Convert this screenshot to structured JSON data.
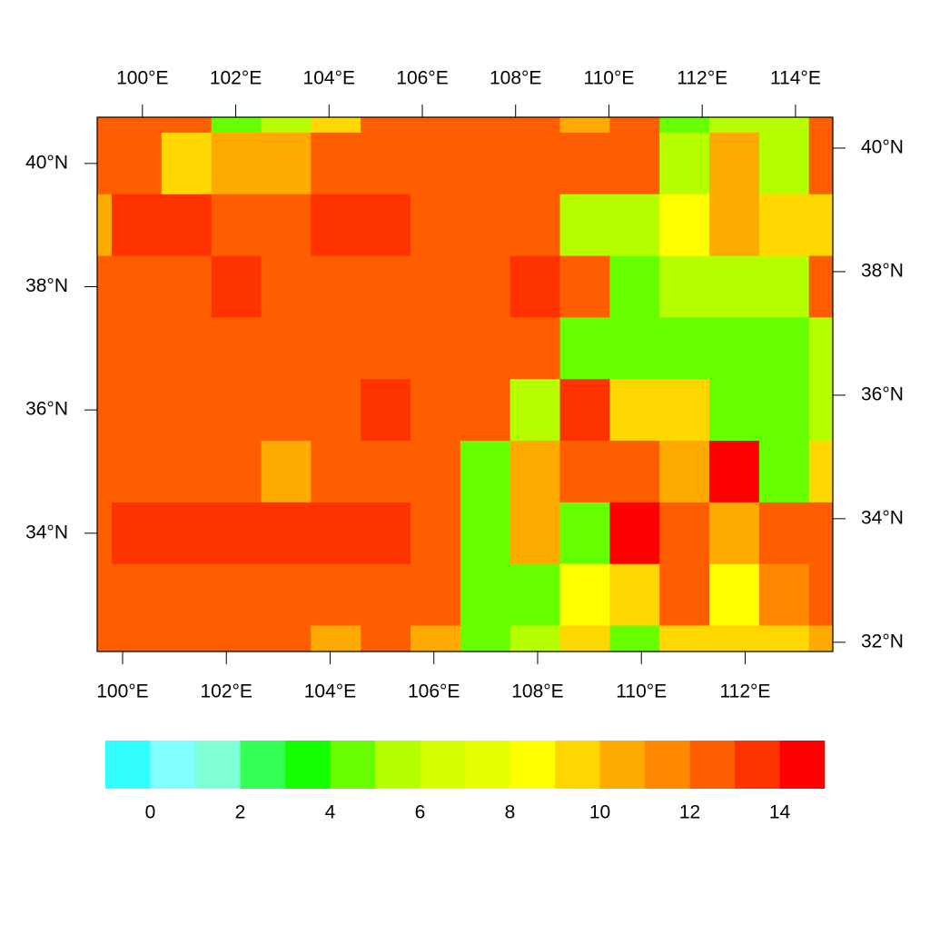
{
  "chart_data": {
    "type": "heatmap",
    "lon": [
      99.31,
      100.27,
      101.23,
      102.19,
      103.15,
      104.11,
      105.07,
      106.03,
      106.99,
      107.95,
      108.91,
      109.87,
      110.83,
      111.79,
      112.75,
      113.71
    ],
    "lat": [
      41,
      40,
      39,
      38,
      37,
      36,
      35,
      34,
      33,
      32
    ],
    "values": [
      [
        12.5,
        12.5,
        12.5,
        4.5,
        5.5,
        9.5,
        12.5,
        12.5,
        12.5,
        12.5,
        10.5,
        12.5,
        4.5,
        5.5,
        5.5,
        12.5
      ],
      [
        12.5,
        12.5,
        9.5,
        10.5,
        10.5,
        12.5,
        12.5,
        12.5,
        12.5,
        12.5,
        12.5,
        12.5,
        5.5,
        10.5,
        5.5,
        12.5
      ],
      [
        10.5,
        13.5,
        13.5,
        12.5,
        12.5,
        13.5,
        13.5,
        12.5,
        12.5,
        12.5,
        5.5,
        5.5,
        8.5,
        10.5,
        9.5,
        9.5
      ],
      [
        12.5,
        12.5,
        12.5,
        13.5,
        12.5,
        12.5,
        12.5,
        12.5,
        12.5,
        13.5,
        12.5,
        4.5,
        5.5,
        5.5,
        5.5,
        12.5
      ],
      [
        12.5,
        12.5,
        12.5,
        12.5,
        12.5,
        12.5,
        12.5,
        12.5,
        12.5,
        12.5,
        4.5,
        4.5,
        4.5,
        4.5,
        4.5,
        5.5
      ],
      [
        12.5,
        12.5,
        12.5,
        12.5,
        12.5,
        12.5,
        13.5,
        12.5,
        12.5,
        5.5,
        13.5,
        9.5,
        9.5,
        4.5,
        4.5,
        5.5
      ],
      [
        12.5,
        12.5,
        12.5,
        12.5,
        10.5,
        12.5,
        12.5,
        12.5,
        4.5,
        10.5,
        12.5,
        12.5,
        10.5,
        14.5,
        4.5,
        9.5
      ],
      [
        12.5,
        13.5,
        13.5,
        13.5,
        13.5,
        13.5,
        13.5,
        12.5,
        4.5,
        10.5,
        4.5,
        14.5,
        12.5,
        10.5,
        12.5,
        12.5
      ],
      [
        12.5,
        12.5,
        12.5,
        12.5,
        12.5,
        12.5,
        12.5,
        12.5,
        4.5,
        4.5,
        8.5,
        9.5,
        12.5,
        8.5,
        11.5,
        12.5
      ],
      [
        12.5,
        12.5,
        12.5,
        12.5,
        12.5,
        10.5,
        12.5,
        10.5,
        4.5,
        5.5,
        9.5,
        4.5,
        9.5,
        9.5,
        9.5,
        10.5
      ]
    ],
    "xlim": [
      99.51,
      113.69
    ],
    "xticks": [
      {
        "value": 100,
        "label": "100°E"
      },
      {
        "value": 102,
        "label": "102°E"
      },
      {
        "value": 104,
        "label": "104°E"
      },
      {
        "value": 106,
        "label": "106°E"
      },
      {
        "value": 108,
        "label": "108°E"
      },
      {
        "value": 110,
        "label": "110°E"
      },
      {
        "value": 112,
        "label": "112°E"
      }
    ],
    "x2lim": [
      99.03,
      114.8
    ],
    "x2ticks": [
      {
        "value": 100,
        "label": "100°E"
      },
      {
        "value": 102,
        "label": "102°E"
      },
      {
        "value": 104,
        "label": "104°E"
      },
      {
        "value": 106,
        "label": "106°E"
      },
      {
        "value": 108,
        "label": "108°E"
      },
      {
        "value": 110,
        "label": "110°E"
      },
      {
        "value": 112,
        "label": "112°E"
      },
      {
        "value": 114,
        "label": "114°E"
      }
    ],
    "ylim": [
      32.08,
      40.75
    ],
    "yticks": [
      {
        "value": 34,
        "label": "34°N"
      },
      {
        "value": 36,
        "label": "36°N"
      },
      {
        "value": 38,
        "label": "38°N"
      },
      {
        "value": 40,
        "label": "40°N"
      }
    ],
    "y2lim": [
      31.85,
      40.5
    ],
    "y2ticks": [
      {
        "value": 32,
        "label": "32°N"
      },
      {
        "value": 34,
        "label": "34°N"
      },
      {
        "value": 36,
        "label": "36°N"
      },
      {
        "value": 38,
        "label": "38°N"
      },
      {
        "value": 40,
        "label": "40°N"
      }
    ],
    "levels": [
      0,
      1,
      2,
      3,
      4,
      5,
      6,
      7,
      8,
      9,
      10,
      11,
      12,
      13,
      14
    ],
    "colors": [
      "#33ffff",
      "#7fffff",
      "#7fffd4",
      "#33ff55",
      "#11ff00",
      "#66ff00",
      "#b5ff00",
      "#d8ff00",
      "#e8ff00",
      "#ffff00",
      "#ffd700",
      "#ffaa00",
      "#ff8800",
      "#ff5e00",
      "#ff3300",
      "#ff0000"
    ],
    "colorbar_ticks": [
      0,
      2,
      4,
      6,
      8,
      10,
      12,
      14
    ]
  }
}
